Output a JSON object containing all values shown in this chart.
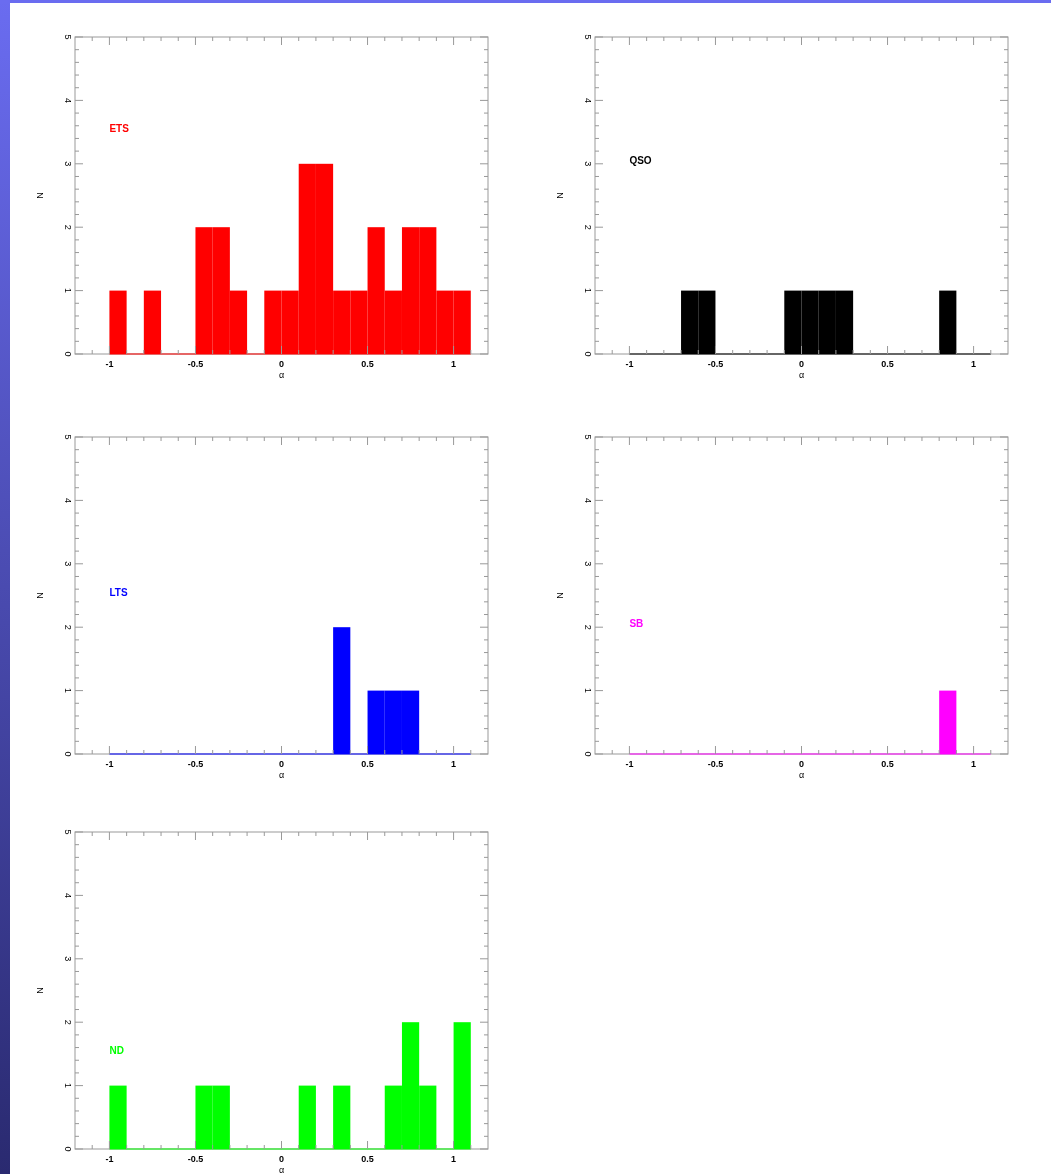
{
  "chart_data": [
    {
      "type": "histogram",
      "xlabel": "α",
      "ylabel": "N",
      "bins": [
        -1.0,
        -0.9,
        -0.8,
        -0.7,
        -0.6,
        -0.5,
        -0.4,
        -0.3,
        -0.2,
        -0.1,
        0.0,
        0.1,
        0.2,
        0.3,
        0.4,
        0.5,
        0.6,
        0.7,
        0.8,
        0.9,
        1.0,
        1.1
      ],
      "xlim": [
        -1.2,
        1.2
      ],
      "ylim": [
        0,
        5
      ],
      "xticks": [
        -1,
        -0.5,
        0,
        0.5,
        1,
        {
          "value": -1.1,
          "label": null
        },
        {
          "value": -0.9,
          "label": null
        },
        {
          "value": -0.8,
          "label": null
        },
        {
          "value": -0.7,
          "label": null
        },
        {
          "value": -0.6,
          "label": null
        },
        {
          "value": -0.4,
          "label": null
        },
        {
          "value": -0.3,
          "label": null
        },
        {
          "value": -0.2,
          "label": null
        },
        {
          "value": -0.1,
          "label": null
        },
        {
          "value": 0.1,
          "label": null
        },
        {
          "value": 0.2,
          "label": null
        },
        {
          "value": 0.3,
          "label": null
        },
        {
          "value": 0.4,
          "label": null
        },
        {
          "value": 0.6,
          "label": null
        },
        {
          "value": 0.7,
          "label": null
        },
        {
          "value": 0.8,
          "label": null
        },
        {
          "value": 0.9,
          "label": null
        },
        {
          "value": 1.1,
          "label": null
        }
      ],
      "yticks": [
        0,
        1,
        2,
        3,
        4,
        5,
        {
          "value": 0.2,
          "label": null
        },
        {
          "value": 0.4,
          "label": null
        },
        {
          "value": 0.6,
          "label": null
        },
        {
          "value": 0.8,
          "label": null
        },
        {
          "value": 1.2,
          "label": null
        },
        {
          "value": 1.4,
          "label": null
        },
        {
          "value": 1.6,
          "label": null
        },
        {
          "value": 1.8,
          "label": null
        },
        {
          "value": 2.2,
          "label": null
        },
        {
          "value": 2.4,
          "label": null
        },
        {
          "value": 2.6,
          "label": null
        },
        {
          "value": 2.8,
          "label": null
        },
        {
          "value": 3.2,
          "label": null
        },
        {
          "value": 3.4,
          "label": null
        },
        {
          "value": 3.6,
          "label": null
        },
        {
          "value": 3.8,
          "label": null
        },
        {
          "value": 4.2,
          "label": null
        },
        {
          "value": 4.4,
          "label": null
        },
        {
          "value": 4.6,
          "label": null
        },
        {
          "value": 4.8,
          "label": null
        }
      ],
      "series": [
        {
          "name": "ETS",
          "color": "#ff0000",
          "values": [
            1,
            0,
            1,
            0,
            0,
            2,
            2,
            1,
            0,
            1,
            1,
            3,
            3,
            1,
            1,
            2,
            1,
            2,
            2,
            1,
            1
          ]
        }
      ]
    },
    {
      "type": "histogram",
      "xlabel": "α",
      "ylabel": "N",
      "bins": [
        -1.0,
        -0.9,
        -0.8,
        -0.7,
        -0.6,
        -0.5,
        -0.4,
        -0.3,
        -0.2,
        -0.1,
        0.0,
        0.1,
        0.2,
        0.3,
        0.4,
        0.5,
        0.6,
        0.7,
        0.8,
        0.9,
        1.0,
        1.1
      ],
      "xlim": [
        -1.2,
        1.2
      ],
      "ylim": [
        0,
        5
      ],
      "xticks": [
        -1,
        -0.5,
        0,
        0.5,
        1,
        {
          "value": -1.1,
          "label": null
        },
        {
          "value": -0.9,
          "label": null
        },
        {
          "value": -0.8,
          "label": null
        },
        {
          "value": -0.7,
          "label": null
        },
        {
          "value": -0.6,
          "label": null
        },
        {
          "value": -0.4,
          "label": null
        },
        {
          "value": -0.3,
          "label": null
        },
        {
          "value": -0.2,
          "label": null
        },
        {
          "value": -0.1,
          "label": null
        },
        {
          "value": 0.1,
          "label": null
        },
        {
          "value": 0.2,
          "label": null
        },
        {
          "value": 0.3,
          "label": null
        },
        {
          "value": 0.4,
          "label": null
        },
        {
          "value": 0.6,
          "label": null
        },
        {
          "value": 0.7,
          "label": null
        },
        {
          "value": 0.8,
          "label": null
        },
        {
          "value": 0.9,
          "label": null
        },
        {
          "value": 1.1,
          "label": null
        }
      ],
      "yticks": [
        0,
        1,
        2,
        3,
        4,
        5,
        {
          "value": 0.2,
          "label": null
        },
        {
          "value": 0.4,
          "label": null
        },
        {
          "value": 0.6,
          "label": null
        },
        {
          "value": 0.8,
          "label": null
        },
        {
          "value": 1.2,
          "label": null
        },
        {
          "value": 1.4,
          "label": null
        },
        {
          "value": 1.6,
          "label": null
        },
        {
          "value": 1.8,
          "label": null
        },
        {
          "value": 2.2,
          "label": null
        },
        {
          "value": 2.4,
          "label": null
        },
        {
          "value": 2.6,
          "label": null
        },
        {
          "value": 2.8,
          "label": null
        },
        {
          "value": 3.2,
          "label": null
        },
        {
          "value": 3.4,
          "label": null
        },
        {
          "value": 3.6,
          "label": null
        },
        {
          "value": 3.8,
          "label": null
        },
        {
          "value": 4.2,
          "label": null
        },
        {
          "value": 4.4,
          "label": null
        },
        {
          "value": 4.6,
          "label": null
        },
        {
          "value": 4.8,
          "label": null
        }
      ],
      "series": [
        {
          "name": "QSO",
          "color": "#000000",
          "values": [
            0,
            0,
            0,
            1,
            1,
            0,
            0,
            0,
            0,
            1,
            1,
            1,
            1,
            0,
            0,
            0,
            0,
            0,
            1,
            0,
            0
          ]
        }
      ]
    },
    {
      "type": "histogram",
      "xlabel": "α",
      "ylabel": "N",
      "bins": [
        -1.0,
        -0.9,
        -0.8,
        -0.7,
        -0.6,
        -0.5,
        -0.4,
        -0.3,
        -0.2,
        -0.1,
        0.0,
        0.1,
        0.2,
        0.3,
        0.4,
        0.5,
        0.6,
        0.7,
        0.8,
        0.9,
        1.0,
        1.1
      ],
      "xlim": [
        -1.2,
        1.2
      ],
      "ylim": [
        0,
        5
      ],
      "xticks": [
        -1,
        -0.5,
        0,
        0.5,
        1,
        {
          "value": -1.1,
          "label": null
        },
        {
          "value": -0.9,
          "label": null
        },
        {
          "value": -0.8,
          "label": null
        },
        {
          "value": -0.7,
          "label": null
        },
        {
          "value": -0.6,
          "label": null
        },
        {
          "value": -0.4,
          "label": null
        },
        {
          "value": -0.3,
          "label": null
        },
        {
          "value": -0.2,
          "label": null
        },
        {
          "value": -0.1,
          "label": null
        },
        {
          "value": 0.1,
          "label": null
        },
        {
          "value": 0.2,
          "label": null
        },
        {
          "value": 0.3,
          "label": null
        },
        {
          "value": 0.4,
          "label": null
        },
        {
          "value": 0.6,
          "label": null
        },
        {
          "value": 0.7,
          "label": null
        },
        {
          "value": 0.8,
          "label": null
        },
        {
          "value": 0.9,
          "label": null
        },
        {
          "value": 1.1,
          "label": null
        }
      ],
      "yticks": [
        0,
        1,
        2,
        3,
        4,
        5,
        {
          "value": 0.2,
          "label": null
        },
        {
          "value": 0.4,
          "label": null
        },
        {
          "value": 0.6,
          "label": null
        },
        {
          "value": 0.8,
          "label": null
        },
        {
          "value": 1.2,
          "label": null
        },
        {
          "value": 1.4,
          "label": null
        },
        {
          "value": 1.6,
          "label": null
        },
        {
          "value": 1.8,
          "label": null
        },
        {
          "value": 2.2,
          "label": null
        },
        {
          "value": 2.4,
          "label": null
        },
        {
          "value": 2.6,
          "label": null
        },
        {
          "value": 2.8,
          "label": null
        },
        {
          "value": 3.2,
          "label": null
        },
        {
          "value": 3.4,
          "label": null
        },
        {
          "value": 3.6,
          "label": null
        },
        {
          "value": 3.8,
          "label": null
        },
        {
          "value": 4.2,
          "label": null
        },
        {
          "value": 4.4,
          "label": null
        },
        {
          "value": 4.6,
          "label": null
        },
        {
          "value": 4.8,
          "label": null
        }
      ],
      "series": [
        {
          "name": "LTS",
          "color": "#0000ff",
          "values": [
            0,
            0,
            0,
            0,
            0,
            0,
            0,
            0,
            0,
            0,
            0,
            0,
            0,
            2,
            0,
            1,
            1,
            1,
            0,
            0,
            0
          ]
        }
      ]
    },
    {
      "type": "histogram",
      "xlabel": "α",
      "ylabel": "N",
      "bins": [
        -1.0,
        -0.9,
        -0.8,
        -0.7,
        -0.6,
        -0.5,
        -0.4,
        -0.3,
        -0.2,
        -0.1,
        0.0,
        0.1,
        0.2,
        0.3,
        0.4,
        0.5,
        0.6,
        0.7,
        0.8,
        0.9,
        1.0,
        1.1
      ],
      "xlim": [
        -1.2,
        1.2
      ],
      "ylim": [
        0,
        5
      ],
      "xticks": [
        -1,
        -0.5,
        0,
        0.5,
        1,
        {
          "value": -1.1,
          "label": null
        },
        {
          "value": -0.9,
          "label": null
        },
        {
          "value": -0.8,
          "label": null
        },
        {
          "value": -0.7,
          "label": null
        },
        {
          "value": -0.6,
          "label": null
        },
        {
          "value": -0.4,
          "label": null
        },
        {
          "value": -0.3,
          "label": null
        },
        {
          "value": -0.2,
          "label": null
        },
        {
          "value": -0.1,
          "label": null
        },
        {
          "value": 0.1,
          "label": null
        },
        {
          "value": 0.2,
          "label": null
        },
        {
          "value": 0.3,
          "label": null
        },
        {
          "value": 0.4,
          "label": null
        },
        {
          "value": 0.6,
          "label": null
        },
        {
          "value": 0.7,
          "label": null
        },
        {
          "value": 0.8,
          "label": null
        },
        {
          "value": 0.9,
          "label": null
        },
        {
          "value": 1.1,
          "label": null
        }
      ],
      "yticks": [
        0,
        1,
        2,
        3,
        4,
        5,
        {
          "value": 0.2,
          "label": null
        },
        {
          "value": 0.4,
          "label": null
        },
        {
          "value": 0.6,
          "label": null
        },
        {
          "value": 0.8,
          "label": null
        },
        {
          "value": 1.2,
          "label": null
        },
        {
          "value": 1.4,
          "label": null
        },
        {
          "value": 1.6,
          "label": null
        },
        {
          "value": 1.8,
          "label": null
        },
        {
          "value": 2.2,
          "label": null
        },
        {
          "value": 2.4,
          "label": null
        },
        {
          "value": 2.6,
          "label": null
        },
        {
          "value": 2.8,
          "label": null
        },
        {
          "value": 3.2,
          "label": null
        },
        {
          "value": 3.4,
          "label": null
        },
        {
          "value": 3.6,
          "label": null
        },
        {
          "value": 3.8,
          "label": null
        },
        {
          "value": 4.2,
          "label": null
        },
        {
          "value": 4.4,
          "label": null
        },
        {
          "value": 4.6,
          "label": null
        },
        {
          "value": 4.8,
          "label": null
        }
      ],
      "series": [
        {
          "name": "SB",
          "color": "#ff00ff",
          "values": [
            0,
            0,
            0,
            0,
            0,
            0,
            0,
            0,
            0,
            0,
            0,
            0,
            0,
            0,
            0,
            0,
            0,
            0,
            1,
            0,
            0
          ]
        }
      ]
    },
    {
      "type": "histogram",
      "xlabel": "α",
      "ylabel": "N",
      "bins": [
        -1.0,
        -0.9,
        -0.8,
        -0.7,
        -0.6,
        -0.5,
        -0.4,
        -0.3,
        -0.2,
        -0.1,
        0.0,
        0.1,
        0.2,
        0.3,
        0.4,
        0.5,
        0.6,
        0.7,
        0.8,
        0.9,
        1.0,
        1.1
      ],
      "xlim": [
        -1.2,
        1.2
      ],
      "ylim": [
        0,
        5
      ],
      "xticks": [
        -1,
        -0.5,
        0,
        0.5,
        1,
        {
          "value": -1.1,
          "label": null
        },
        {
          "value": -0.9,
          "label": null
        },
        {
          "value": -0.8,
          "label": null
        },
        {
          "value": -0.7,
          "label": null
        },
        {
          "value": -0.6,
          "label": null
        },
        {
          "value": -0.4,
          "label": null
        },
        {
          "value": -0.3,
          "label": null
        },
        {
          "value": -0.2,
          "label": null
        },
        {
          "value": -0.1,
          "label": null
        },
        {
          "value": 0.1,
          "label": null
        },
        {
          "value": 0.2,
          "label": null
        },
        {
          "value": 0.3,
          "label": null
        },
        {
          "value": 0.4,
          "label": null
        },
        {
          "value": 0.6,
          "label": null
        },
        {
          "value": 0.7,
          "label": null
        },
        {
          "value": 0.8,
          "label": null
        },
        {
          "value": 0.9,
          "label": null
        },
        {
          "value": 1.1,
          "label": null
        }
      ],
      "yticks": [
        0,
        1,
        2,
        3,
        4,
        5,
        {
          "value": 0.2,
          "label": null
        },
        {
          "value": 0.4,
          "label": null
        },
        {
          "value": 0.6,
          "label": null
        },
        {
          "value": 0.8,
          "label": null
        },
        {
          "value": 1.2,
          "label": null
        },
        {
          "value": 1.4,
          "label": null
        },
        {
          "value": 1.6,
          "label": null
        },
        {
          "value": 1.8,
          "label": null
        },
        {
          "value": 2.2,
          "label": null
        },
        {
          "value": 2.4,
          "label": null
        },
        {
          "value": 2.6,
          "label": null
        },
        {
          "value": 2.8,
          "label": null
        },
        {
          "value": 3.2,
          "label": null
        },
        {
          "value": 3.4,
          "label": null
        },
        {
          "value": 3.6,
          "label": null
        },
        {
          "value": 3.8,
          "label": null
        },
        {
          "value": 4.2,
          "label": null
        },
        {
          "value": 4.4,
          "label": null
        },
        {
          "value": 4.6,
          "label": null
        },
        {
          "value": 4.8,
          "label": null
        }
      ],
      "series": [
        {
          "name": "ND",
          "color": "#00ff00",
          "values": [
            1,
            0,
            0,
            0,
            0,
            1,
            1,
            0,
            0,
            0,
            0,
            1,
            0,
            1,
            0,
            0,
            1,
            2,
            1,
            0,
            2
          ]
        }
      ]
    }
  ]
}
